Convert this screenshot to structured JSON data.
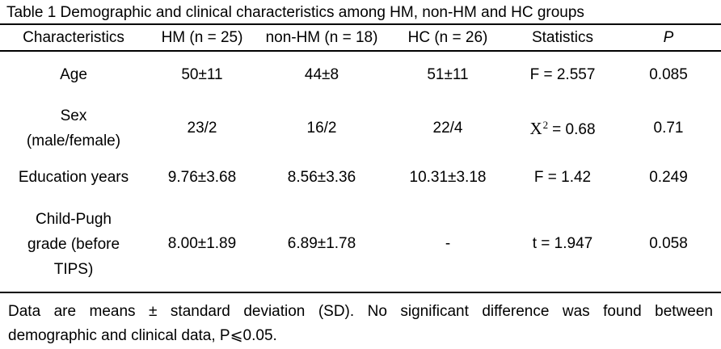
{
  "title": "Table 1 Demographic and clinical characteristics among HM, non-HM and HC groups",
  "table": {
    "headers": {
      "characteristics": "Characteristics",
      "hm": "HM (n = 25)",
      "non_hm": "non-HM (n = 18)",
      "hc": "HC (n = 26)",
      "statistics": "Statistics",
      "p": "P"
    },
    "rows": {
      "age": {
        "label": "Age",
        "hm": "50±11",
        "non_hm": "44±8",
        "hc": "51±11",
        "statistic": "F = 2.557",
        "p": "0.085"
      },
      "sex": {
        "label_line1": "Sex",
        "label_line2": "(male/female)",
        "hm": "23/2",
        "non_hm": "16/2",
        "hc": "22/4",
        "statistic_symbol": "X",
        "statistic_superscript": "2",
        "statistic_value": "= 0.68",
        "p": "0.71"
      },
      "education": {
        "label": "Education years",
        "hm": "9.76±3.68",
        "non_hm": "8.56±3.36",
        "hc": "10.31±3.18",
        "statistic": "F = 1.42",
        "p": "0.249"
      },
      "child_pugh": {
        "label_line1": "Child-Pugh",
        "label_line2": "grade (before",
        "label_line3": "TIPS)",
        "hm": "8.00±1.89",
        "non_hm": "6.89±1.78",
        "hc": "-",
        "statistic": "t = 1.947",
        "p": "0.058"
      }
    }
  },
  "footnote": {
    "line1": "Data are means ± standard deviation (SD). No significant difference was found between",
    "line2": "demographic and clinical data, P⩽0.05."
  }
}
